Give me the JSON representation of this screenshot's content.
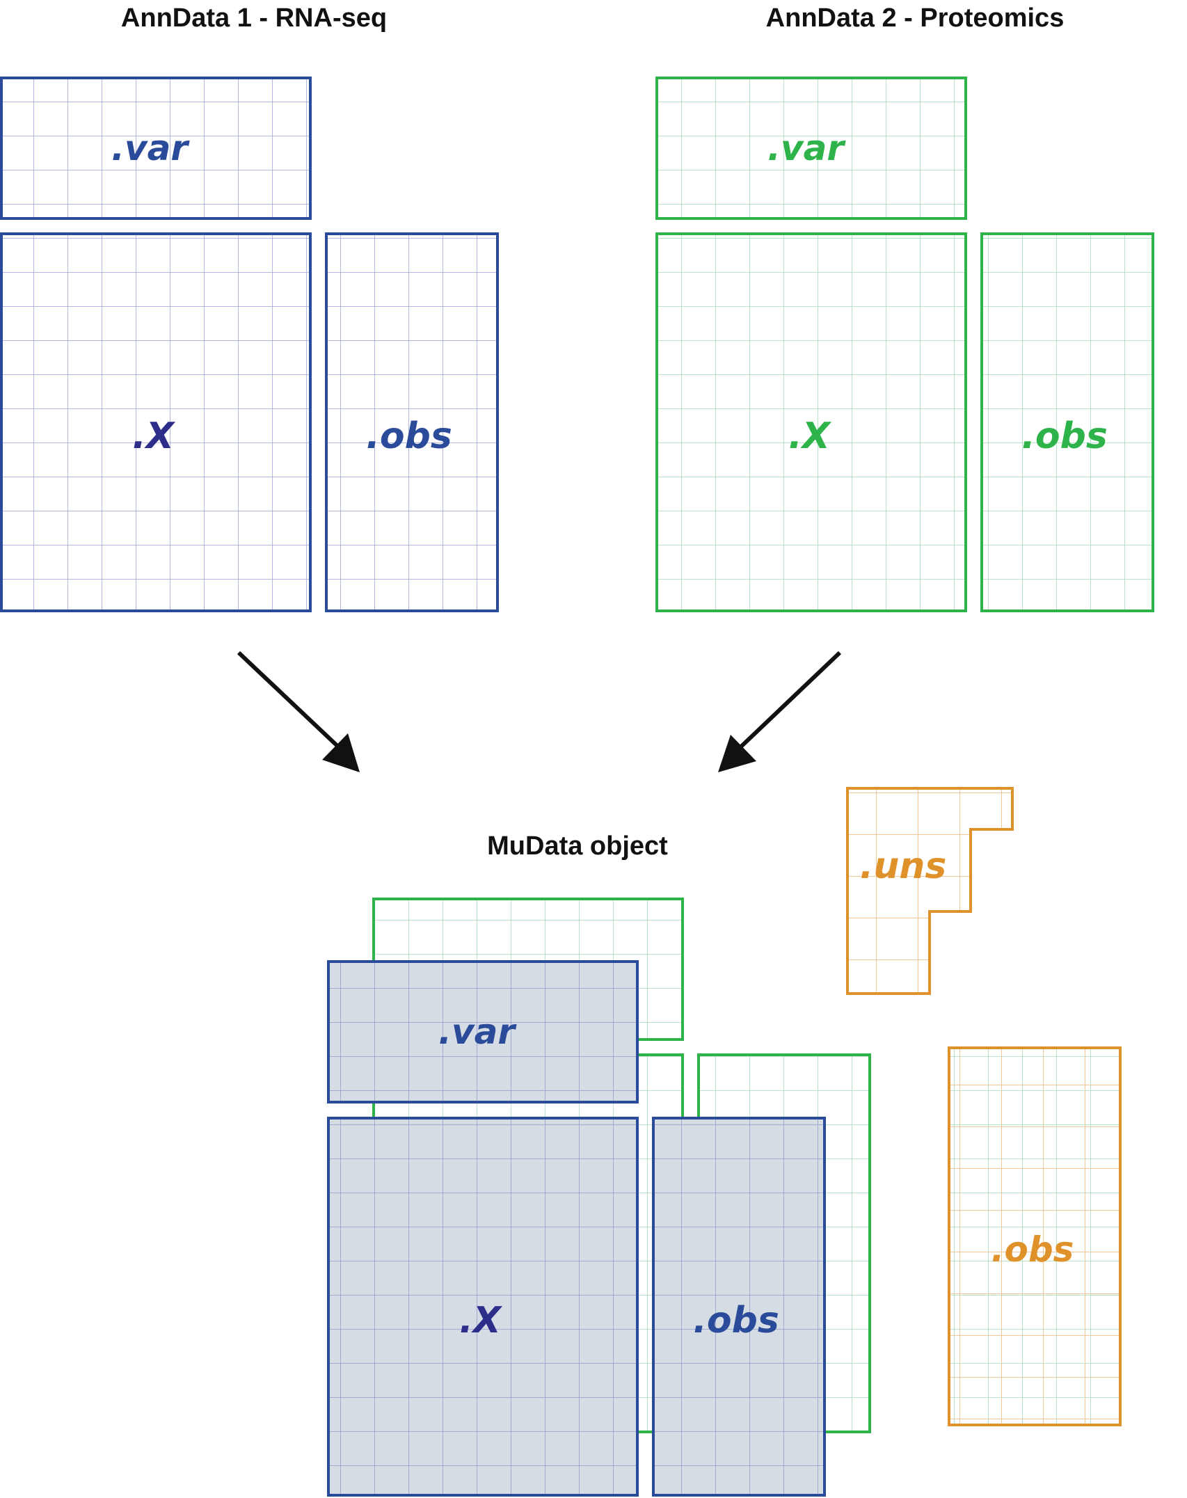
{
  "headings": {
    "anndata1": "AnnData 1 - RNA-seq",
    "anndata2": "AnnData 2 - Proteomics",
    "mudata": "MuData object"
  },
  "colors": {
    "rna_border": "#2a4a9a",
    "rna_grid": "#9aa0d8",
    "rna_text": "#2a4a9a",
    "rna_x_text": "#2d2d8a",
    "prot_border": "#2db34a",
    "prot_grid": "#a3dcb8",
    "prot_text": "#2db34a",
    "uns_border": "#e0922a",
    "uns_grid": "#ebb77a",
    "uns_text": "#e0922a",
    "mudata_fill": "#d6dce4",
    "mudata_grid": "#8e9ad0",
    "arrow": "#111111"
  },
  "labels": {
    "rna_var": ".var",
    "rna_x": ".X",
    "rna_obs": ".obs",
    "prot_var": ".var",
    "prot_x": ".X",
    "prot_obs": ".obs",
    "mu_var": ".var",
    "mu_x": ".X",
    "mu_obs": ".obs",
    "uns": ".uns",
    "global_obs": ".obs"
  },
  "icons": {
    "arrow_left": "arrow-down-right-icon",
    "arrow_right": "arrow-down-left-icon"
  }
}
